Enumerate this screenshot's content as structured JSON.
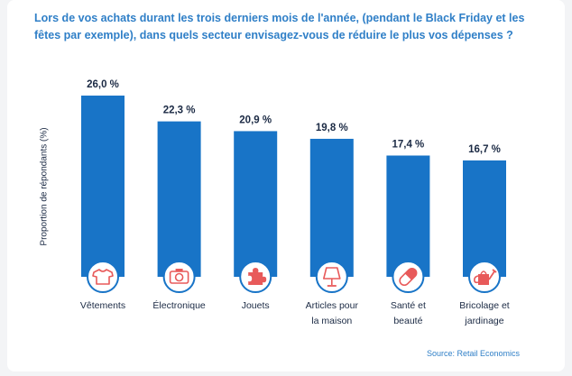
{
  "title": "Lors de vos achats durant les trois derniers mois de l'année, (pendant le Black Friday et les fêtes par exemple), dans quels secteur envisagez-vous de réduire le plus vos dépenses ?",
  "source": "Source: Retail Economics",
  "colors": {
    "bar": "#1874c7",
    "icon": "#e85a5a",
    "title": "#2f7fc7",
    "text": "#1b2a44"
  },
  "chart_data": {
    "type": "bar",
    "ylabel": "Proportion de répondants (%)",
    "xlabel": "",
    "ylim": [
      0,
      30
    ],
    "grid": false,
    "categories": [
      [
        "Vêtements"
      ],
      [
        "Électronique"
      ],
      [
        "Jouets"
      ],
      [
        "Articles pour",
        "la maison"
      ],
      [
        "Santé et",
        "beauté"
      ],
      [
        "Bricolage et",
        "jardinage"
      ]
    ],
    "values": [
      26.0,
      22.3,
      20.9,
      19.8,
      17.4,
      16.7
    ],
    "value_labels": [
      "26,0 %",
      "22,3 %",
      "20,9 %",
      "19,8 %",
      "17,4 %",
      "16,7 %"
    ],
    "icons": [
      "tshirt-icon",
      "camera-icon",
      "puzzle-icon",
      "lamp-icon",
      "pill-icon",
      "watering-can-icon"
    ]
  }
}
